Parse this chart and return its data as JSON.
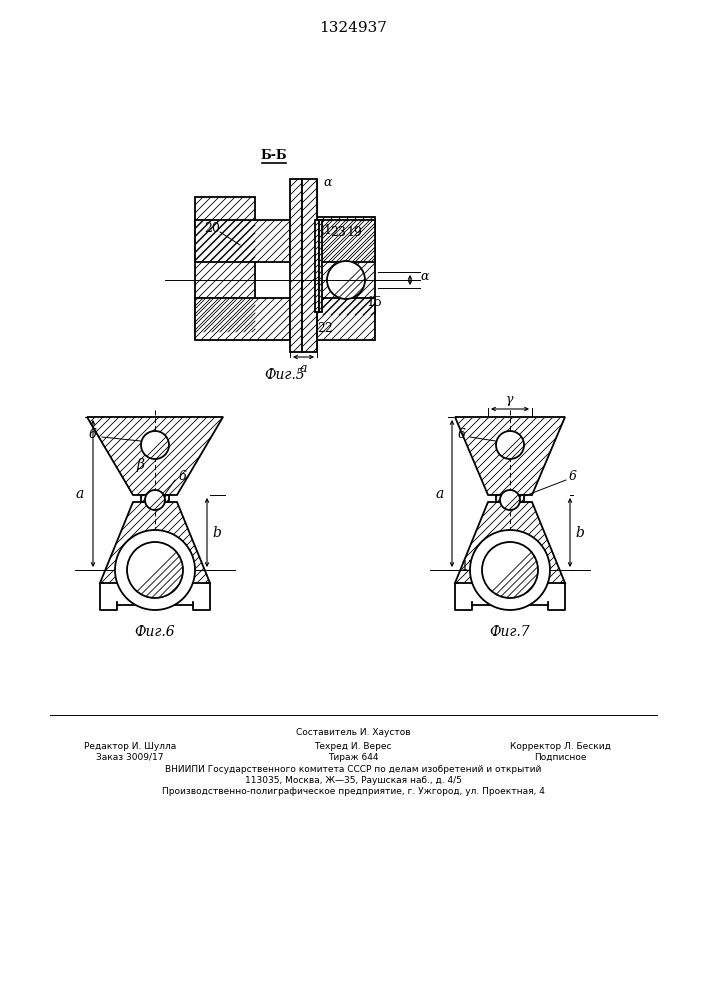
{
  "title": "1324937",
  "fig5_label": "Фиг.5",
  "fig6_label": "Фиг.6",
  "fig7_label": "Фиг.7",
  "bg_color": "#ffffff",
  "line_color": "#000000",
  "footer_lines": [
    "Составитель И. Хаустов",
    "Редактор И. Шулла",
    "Техред И. Верес",
    "Корректор Л. Бескид",
    "Заказ 3009/17",
    "Тираж 644",
    "Подписное",
    "ВНИИПИ Государственного комитета СССР по делам изобретений и открытий",
    "113035, Москва, Ж—35, Раушская наб., д. 4/5",
    "Производственно-полиграфическое предприятие, г. Ужгород, ул. Проектная, 4"
  ]
}
